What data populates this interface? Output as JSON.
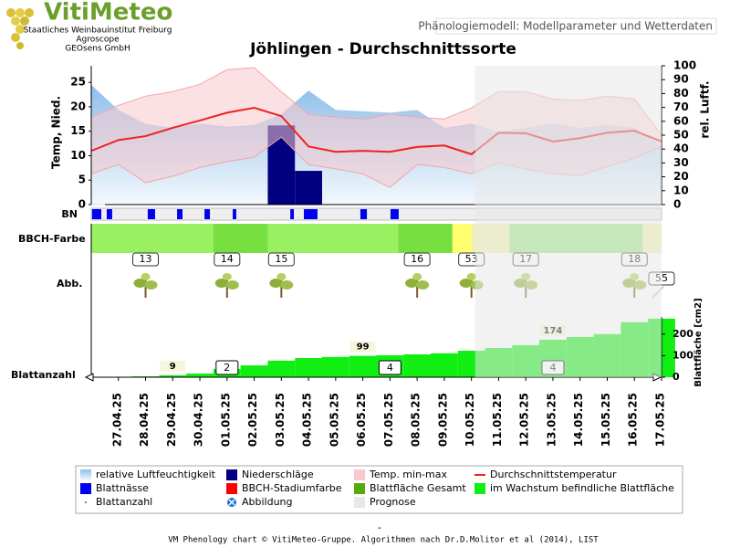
{
  "header": {
    "logo": "VitiMeteo",
    "org1": "Staatliches Weinbauinstitut Freiburg",
    "org2": "Agroscope",
    "org3": "GEOsens GmbH",
    "tab": "Phänologiemodell: Modellparameter und Wetterdaten"
  },
  "chart_data": {
    "type": "phenology",
    "title": "Jöhlingen - Durchschnittssorte",
    "ylabel": "Temp, Nied.",
    "y2label": "rel. Luftf.",
    "categories": [
      null,
      "27.04.25",
      "28.04.25",
      "29.04.25",
      "30.04.25",
      "01.05.25",
      "02.05.25",
      "03.05.25",
      "04.05.25",
      "05.05.25",
      "06.05.25",
      "07.05.25",
      "08.05.25",
      "09.05.25",
      "10.05.25",
      "11.05.25",
      "12.05.25",
      "13.05.25",
      "14.05.25",
      "15.05.25",
      "16.05.25",
      "17.05.25"
    ],
    "ylim": [
      0,
      28.4
    ],
    "yticks": [
      0,
      5,
      10,
      15,
      20,
      25
    ],
    "y2lim": [
      0,
      100
    ],
    "y2ticks": [
      0,
      10,
      20,
      30,
      40,
      50,
      60,
      70,
      80,
      90,
      100
    ],
    "forecast_start": "10.05.25",
    "humidity": {
      "axis": "y2",
      "values": [
        86,
        68,
        58,
        55,
        58,
        56,
        57,
        65,
        82,
        68,
        67,
        66,
        68,
        55,
        58,
        52,
        55,
        58,
        55,
        57,
        55,
        42
      ]
    },
    "precipitation": {
      "values": [
        0,
        0,
        0,
        0,
        0,
        0,
        0,
        16.2,
        6.9,
        0,
        0,
        0,
        0,
        0,
        0,
        0,
        0,
        0,
        0,
        0,
        0,
        0
      ]
    },
    "temp_range": {
      "low": [
        6.3,
        8.2,
        4.5,
        5.8,
        7.6,
        8.8,
        9.7,
        13.8,
        8.2,
        7.3,
        6.3,
        3.5,
        8.2,
        7.6,
        6.3,
        8.6,
        7.3,
        6.3,
        6.0,
        7.8,
        9.5,
        11.9
      ],
      "high": [
        17.9,
        20.3,
        22.2,
        23.1,
        24.6,
        27.6,
        28.0,
        23.1,
        18.5,
        17.9,
        17.5,
        18.5,
        17.9,
        17.5,
        19.8,
        23.1,
        23.1,
        21.6,
        21.3,
        22.2,
        21.6,
        14.2
      ]
    },
    "avg_temp": {
      "values": [
        11,
        13.2,
        14,
        15.7,
        17.2,
        18.8,
        19.8,
        18.1,
        11.9,
        10.8,
        11,
        10.8,
        11.8,
        12.1,
        10.3,
        14.7,
        14.6,
        12.9,
        13.6,
        14.7,
        15.1,
        12.9
      ]
    },
    "leaf_wetness": {
      "label": "BN",
      "intervals": [
        [
          0.03,
          0.37
        ],
        [
          0.57,
          0.77
        ],
        [
          2.08,
          2.35
        ],
        [
          3.16,
          3.36
        ],
        [
          4.17,
          4.37
        ],
        [
          5.21,
          5.34
        ],
        [
          7.33,
          7.46
        ],
        [
          7.83,
          8.33
        ],
        [
          9.91,
          10.15
        ],
        [
          11.02,
          11.32
        ]
      ]
    },
    "bbch_color": {
      "label": "BBCH-Farbe",
      "segments": [
        {
          "from": 0,
          "to": 4.5,
          "color": "#99f060"
        },
        {
          "from": 4.5,
          "to": 6.5,
          "color": "#77e040"
        },
        {
          "from": 6.5,
          "to": 11.3,
          "color": "#99f060"
        },
        {
          "from": 11.3,
          "to": 13.3,
          "color": "#77e040"
        },
        {
          "from": 13.3,
          "to": 14,
          "color": "#ffff70"
        },
        {
          "from": 14,
          "to": 15.4,
          "color": "#f2f2b0"
        },
        {
          "from": 15.4,
          "to": 20.3,
          "color": "#a0e888"
        },
        {
          "from": 20.3,
          "to": 21,
          "color": "#f2f2b0"
        }
      ]
    },
    "stages": {
      "label": "Abb.",
      "dates": [
        "28.04.25",
        "01.05.25",
        "03.05.25",
        "08.05.25",
        "10.05.25",
        "12.05.25",
        "16.05.25",
        "17.05.25"
      ],
      "values": [
        13,
        14,
        15,
        16,
        53,
        17,
        18,
        55
      ]
    },
    "leaf": {
      "label": "Blattanzahl",
      "axis_label": "Blattfläche [cm2]",
      "ylim": [
        0,
        280
      ],
      "yticks": [
        0,
        100,
        200
      ],
      "values": [
        0,
        1,
        4,
        9,
        17,
        38,
        55,
        77,
        89,
        94,
        99,
        102,
        106,
        111,
        123,
        136,
        149,
        174,
        187,
        200,
        255,
        272
      ],
      "value_labels": [
        null,
        null,
        null,
        "9",
        null,
        null,
        null,
        null,
        null,
        null,
        "99",
        null,
        null,
        null,
        null,
        null,
        null,
        "174",
        null,
        null,
        null,
        null
      ],
      "counts": {
        "dates": [
          "01.05.25",
          "07.05.25",
          "13.05.25"
        ],
        "values": [
          2,
          4,
          4
        ]
      }
    },
    "legend": [
      {
        "name": "relative Luftfeuchtigkeit",
        "color": "#9cc8ee",
        "symbol": "gradient"
      },
      {
        "name": "Niederschläge",
        "color": "#000080",
        "symbol": "box"
      },
      {
        "name": "Temp. min-max",
        "color": "#f7c8cc",
        "symbol": "box"
      },
      {
        "name": "Durchschnittstemperatur",
        "color": "#ee2222",
        "symbol": "line"
      },
      {
        "name": "Blattnässe",
        "color": "#0000ee",
        "symbol": "box"
      },
      {
        "name": "BBCH-Stadiumfarbe",
        "color": "#ff0000",
        "symbol": "box"
      },
      {
        "name": "Blattfläche Gesamt",
        "color": "#55aa11",
        "symbol": "box"
      },
      {
        "name": "im Wachstum befindliche Blattfläche",
        "color": "#11ee11",
        "symbol": "box"
      },
      {
        "name": "Blattanzahl",
        "color": "#555555",
        "symbol": "dot"
      },
      {
        "name": "Abbildung",
        "color": "#1e6fd0",
        "symbol": "icon"
      },
      {
        "name": "Prognose",
        "color": "#e8e8e8",
        "symbol": "box"
      }
    ]
  },
  "footer": "VM Phenology chart © VitiMeteo-Gruppe. Algorithmen nach Dr.D.Molitor et al (2014), LIST"
}
